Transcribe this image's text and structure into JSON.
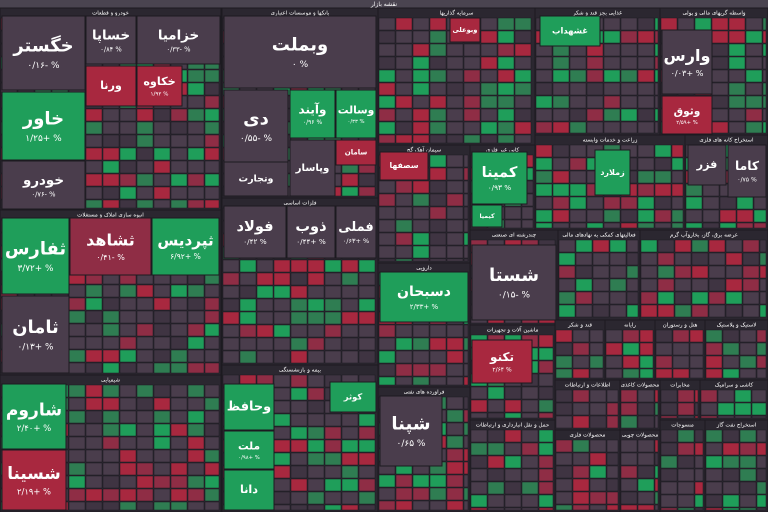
{
  "header": {
    "title": "نقشه بازار"
  },
  "sectors": [
    {
      "title": "خودرو و قطعات",
      "tiles": [
        {
          "name": "خگستر",
          "change": "۰/۱۶- %",
          "color": "#4a3d4c"
        },
        {
          "name": "خساپا",
          "change": "۰/۸۴ %",
          "color": "#4a3d4c"
        },
        {
          "name": "خزامیا",
          "change": "۰/۳۳- %",
          "color": "#4a3d4c"
        },
        {
          "name": "خاور",
          "change": "۱/۲۵+ %",
          "color": "#1f9e5a"
        },
        {
          "name": "خودرو",
          "change": "۰/۷۶- %",
          "color": "#4a3d4c"
        },
        {
          "name": "ورنا",
          "color": "#a8283f"
        },
        {
          "name": "خکاوه",
          "change": "۱/۹۲ %",
          "color": "#a8283f"
        }
      ]
    },
    {
      "title": "بانکها و موسسات اعتباری",
      "tiles": [
        {
          "name": "وبملت",
          "change": "۰ %",
          "color": "#4a3d4c"
        },
        {
          "name": "دی",
          "change": "۰/۵۵- %",
          "color": "#4a3d4c"
        },
        {
          "name": "وتجارت",
          "color": "#4a3d4c"
        },
        {
          "name": "وآیند",
          "change": "۰/۹۶ %",
          "color": "#1f9e5a"
        },
        {
          "name": "وسالت",
          "change": "۰/۳۳ %",
          "color": "#1f9e5a"
        },
        {
          "name": "وپاسار",
          "color": "#4a3d4c"
        },
        {
          "name": "سامان",
          "color": "#a8283f"
        }
      ]
    },
    {
      "title": "انبوه سازی املاک و مستغلات",
      "tiles": [
        {
          "name": "ثفارس",
          "change": "۳/۷۲+ %",
          "color": "#1f9e5a"
        },
        {
          "name": "ثامان",
          "change": "۰/۱۳+ %",
          "color": "#4a3d4c"
        },
        {
          "name": "ثشاهد",
          "change": "۰/۴۱- %",
          "color": "#8f2d45"
        },
        {
          "name": "ثپردیس",
          "change": "۶/۹۲+ %",
          "color": "#1f9e5a"
        }
      ]
    },
    {
      "title": "فلزات اساسی",
      "tiles": [
        {
          "name": "فولاد",
          "change": "۰/۴۲ %",
          "color": "#4a3d4c"
        },
        {
          "name": "ذوب",
          "change": "۰/۴۴+ %",
          "color": "#4a3d4c"
        },
        {
          "name": "فملی",
          "change": "۰/۶۳+ %",
          "color": "#4a3d4c"
        }
      ]
    },
    {
      "title": "شیمیایی",
      "tiles": [
        {
          "name": "شاروم",
          "change": "۲/۴۰+ %",
          "color": "#1f9e5a"
        },
        {
          "name": "شسینا",
          "change": "۲/۱۹+ %",
          "color": "#a8283f"
        }
      ]
    },
    {
      "title": "بیمه و بازنشستگی",
      "tiles": [
        {
          "name": "وحافظ",
          "color": "#1f9e5a"
        },
        {
          "name": "ملت",
          "change": "۰/۹۸+ %",
          "color": "#1f9e5a"
        },
        {
          "name": "دانا",
          "color": "#1f9e5a"
        },
        {
          "name": "کوثر",
          "color": "#1f9e5a"
        }
      ]
    },
    {
      "title": "سرمایه گذاریها",
      "tiles": [
        {
          "name": "وبوعلی",
          "color": "#a8283f"
        }
      ]
    },
    {
      "title": "سیمان آهک گچ",
      "tiles": [
        {
          "name": "سصفها",
          "color": "#a8283f"
        }
      ]
    },
    {
      "title": "کانی غیر فلزی",
      "tiles": [
        {
          "name": "کمینا",
          "change": "۰/۹۳ %",
          "color": "#1f9e5a"
        },
        {
          "name": "کیمیا",
          "color": "#1f9e5a"
        }
      ]
    },
    {
      "title": "دارویی",
      "tiles": [
        {
          "name": "دسبحان",
          "change": "۲/۳۳+ %",
          "color": "#1f9e5a"
        }
      ]
    },
    {
      "title": "چندرشته ای صنعتی",
      "tiles": [
        {
          "name": "شستا",
          "change": "۰/۱۵- %",
          "color": "#4a3d4c"
        }
      ]
    },
    {
      "title": "ماشین آلات و تجهیزات",
      "tiles": [
        {
          "name": "تکنو",
          "change": "۲/۶۴ %",
          "color": "#a8283f"
        }
      ]
    },
    {
      "title": "فراورده های نفتی",
      "tiles": [
        {
          "name": "شپنا",
          "change": "۰/۶۵ %",
          "color": "#4a3d4c"
        }
      ]
    },
    {
      "title": "حمل و نقل انبارداری و ارتباطات",
      "tiles": []
    },
    {
      "title": "غذایی بجز قند و شکر",
      "tiles": [
        {
          "name": "غشهداب",
          "color": "#1f9e5a"
        }
      ]
    },
    {
      "title": "واسطه گریهای مالی و پولی",
      "tiles": [
        {
          "name": "وارس",
          "change": "۰/۰۳+ %",
          "color": "#4a3d4c"
        },
        {
          "name": "وثوق",
          "change": "۲/۵۹+ %",
          "color": "#a8283f"
        }
      ]
    },
    {
      "title": "زراعت و خدمات وابسته",
      "tiles": [
        {
          "name": "زملارد",
          "color": "#1f9e5a"
        }
      ]
    },
    {
      "title": "استخراج کانه های فلزی",
      "tiles": [
        {
          "name": "کاما",
          "change": "۰/۷۵ %",
          "color": "#4a3d4c"
        },
        {
          "name": "فزر",
          "color": "#4a3d4c"
        }
      ]
    },
    {
      "title": "فعالیتهای کمکی به نهادهای مالی",
      "tiles": []
    },
    {
      "title": "عرضه برق، گاز، بخاروآب گرم",
      "tiles": []
    },
    {
      "title": "قند و شکر",
      "tiles": []
    },
    {
      "title": "رایانه",
      "tiles": []
    },
    {
      "title": "هتل و رستوران",
      "tiles": []
    },
    {
      "title": "لاستیک و پلاستیک",
      "tiles": []
    },
    {
      "title": "اطلاعات و ارتباطات",
      "tiles": []
    },
    {
      "title": "محصولات کاغذی",
      "tiles": []
    },
    {
      "title": "مخابرات",
      "tiles": []
    },
    {
      "title": "کاشی و سرامیک",
      "tiles": []
    },
    {
      "title": "محصولات فلزی",
      "tiles": []
    },
    {
      "title": "محصولات چوبی",
      "tiles": []
    },
    {
      "title": "منسوجات",
      "tiles": []
    },
    {
      "title": "استخراج نفت گاز",
      "tiles": []
    }
  ]
}
